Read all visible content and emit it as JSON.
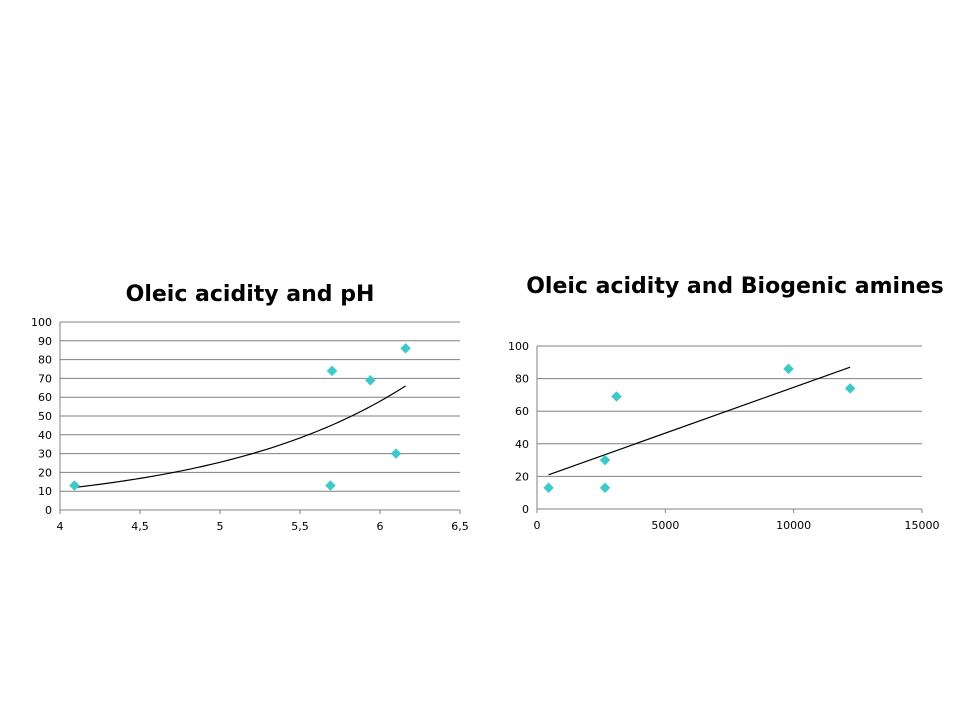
{
  "colors": {
    "marker": "#3EC9C9",
    "trendline": "#000000",
    "gridline": "#808080",
    "background": "#ffffff"
  },
  "chart_data": [
    {
      "type": "scatter",
      "title": "Oleic acidity and pH",
      "xlabel": "",
      "ylabel": "",
      "xlim": [
        4,
        6.5
      ],
      "ylim": [
        0,
        100
      ],
      "x_ticks": [
        4,
        4.5,
        5,
        5.5,
        6,
        6.5
      ],
      "x_tick_labels": [
        "4",
        "4,5",
        "5",
        "5,5",
        "6",
        "6,5"
      ],
      "y_ticks": [
        0,
        10,
        20,
        30,
        40,
        50,
        60,
        70,
        80,
        90,
        100
      ],
      "y_tick_labels": [
        "0",
        "10",
        "20",
        "30",
        "40",
        "50",
        "60",
        "70",
        "80",
        "90",
        "100"
      ],
      "grid": true,
      "marker": "diamond",
      "points": [
        {
          "x": 4.09,
          "y": 13
        },
        {
          "x": 5.69,
          "y": 13
        },
        {
          "x": 5.7,
          "y": 74
        },
        {
          "x": 5.94,
          "y": 69
        },
        {
          "x": 6.1,
          "y": 30
        },
        {
          "x": 6.16,
          "y": 86
        }
      ],
      "trendline": {
        "type": "exponential",
        "from": [
          4.09,
          12
        ],
        "to": [
          6.16,
          66
        ]
      }
    },
    {
      "type": "scatter",
      "title": "Oleic acidity and Biogenic amines",
      "xlabel": "",
      "ylabel": "",
      "xlim": [
        0,
        15000
      ],
      "ylim": [
        0,
        100
      ],
      "x_ticks": [
        0,
        5000,
        10000,
        15000
      ],
      "x_tick_labels": [
        "0",
        "5000",
        "10000",
        "15000"
      ],
      "y_ticks": [
        0,
        20,
        40,
        60,
        80,
        100
      ],
      "y_tick_labels": [
        "0",
        "20",
        "40",
        "60",
        "80",
        "100"
      ],
      "grid": true,
      "marker": "diamond",
      "points": [
        {
          "x": 450,
          "y": 13
        },
        {
          "x": 2650,
          "y": 13
        },
        {
          "x": 2650,
          "y": 30
        },
        {
          "x": 3100,
          "y": 69
        },
        {
          "x": 9800,
          "y": 86
        },
        {
          "x": 12200,
          "y": 74
        }
      ],
      "trendline": {
        "type": "linear",
        "from": [
          450,
          21
        ],
        "to": [
          12200,
          87
        ]
      }
    }
  ]
}
